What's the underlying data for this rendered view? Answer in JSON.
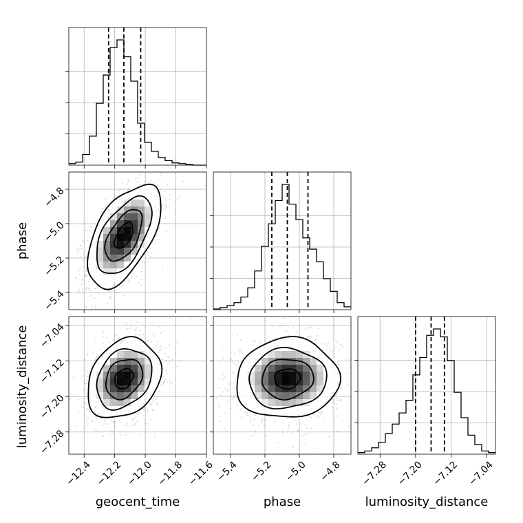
{
  "chart_data": {
    "type": "corner",
    "parameters": [
      "geocent_time",
      "phase",
      "luminosity_distance"
    ],
    "axes": {
      "geocent_time": {
        "range": [
          -12.5,
          -11.6
        ],
        "ticks": [
          -12.4,
          -12.2,
          -12.0,
          -11.8,
          -11.6
        ],
        "tick_labels": [
          "−12.4",
          "−12.2",
          "−12.0",
          "−11.8",
          "−11.6"
        ]
      },
      "phase": {
        "range": [
          -5.5,
          -4.7
        ],
        "ticks": [
          -5.4,
          -5.2,
          -5.0,
          -4.8
        ],
        "tick_labels": [
          "−5.4",
          "−5.2",
          "−5.0",
          "−4.8"
        ]
      },
      "luminosity_distance": {
        "range": [
          -7.33,
          -7.02
        ],
        "ticks": [
          -7.28,
          -7.2,
          -7.12,
          -7.04
        ],
        "tick_labels": [
          "−7.28",
          "−7.20",
          "−7.12",
          "−7.04"
        ]
      }
    },
    "histograms": {
      "geocent_time": {
        "bins": [
          -12.5,
          -12.455,
          -12.41,
          -12.365,
          -12.32,
          -12.275,
          -12.23,
          -12.185,
          -12.14,
          -12.095,
          -12.05,
          -12.005,
          -11.96,
          -11.915,
          -11.87,
          -11.825,
          -11.78,
          -11.735,
          -11.69,
          -11.645,
          -11.6
        ],
        "counts": [
          2,
          4,
          14,
          38,
          81,
          118,
          154,
          164,
          142,
          110,
          55,
          30,
          18,
          10,
          6,
          3,
          2,
          1,
          0,
          0
        ],
        "quantiles": [
          -12.24,
          -12.14,
          -12.03
        ]
      },
      "phase": {
        "bins": [
          -5.5,
          -5.46,
          -5.42,
          -5.38,
          -5.34,
          -5.3,
          -5.26,
          -5.22,
          -5.18,
          -5.14,
          -5.1,
          -5.06,
          -5.02,
          -4.98,
          -4.94,
          -4.9,
          -4.86,
          -4.82,
          -4.78,
          -4.74,
          -4.7
        ],
        "counts": [
          1,
          3,
          6,
          10,
          18,
          31,
          55,
          90,
          122,
          155,
          178,
          150,
          128,
          102,
          86,
          68,
          44,
          26,
          10,
          4
        ],
        "quantiles": [
          -5.16,
          -5.07,
          -4.95
        ]
      },
      "luminosity_distance": {
        "bins": [
          -7.33,
          -7.3145,
          -7.299,
          -7.2835,
          -7.268,
          -7.2525,
          -7.237,
          -7.2215,
          -7.206,
          -7.1905,
          -7.175,
          -7.1595,
          -7.144,
          -7.1285,
          -7.113,
          -7.0975,
          -7.082,
          -7.0665,
          -7.051,
          -7.0355,
          -7.02
        ],
        "counts": [
          2,
          4,
          8,
          15,
          26,
          38,
          52,
          68,
          100,
          122,
          150,
          158,
          148,
          118,
          78,
          46,
          24,
          12,
          4,
          2
        ],
        "quantiles": [
          -7.2,
          -7.165,
          -7.135
        ]
      }
    },
    "pairs": [
      {
        "x": "geocent_time",
        "y": "phase",
        "mean": [
          -12.14,
          -5.07
        ],
        "sd": [
          0.12,
          0.15
        ],
        "rho": 0.55
      },
      {
        "x": "geocent_time",
        "y": "luminosity_distance",
        "mean": [
          -12.14,
          -7.16
        ],
        "sd": [
          0.12,
          0.045
        ],
        "rho": 0.25
      },
      {
        "x": "phase",
        "y": "luminosity_distance",
        "mean": [
          -5.07,
          -7.16
        ],
        "sd": [
          0.15,
          0.045
        ],
        "rho": 0.05
      }
    ],
    "contour_levels_sigma": [
      0.5,
      1.0,
      1.5,
      2.0
    ],
    "grid": true,
    "title": "",
    "colors": {
      "points": "#7a7a7a",
      "lines": "#000000",
      "grid": "#b0b0b0"
    }
  }
}
